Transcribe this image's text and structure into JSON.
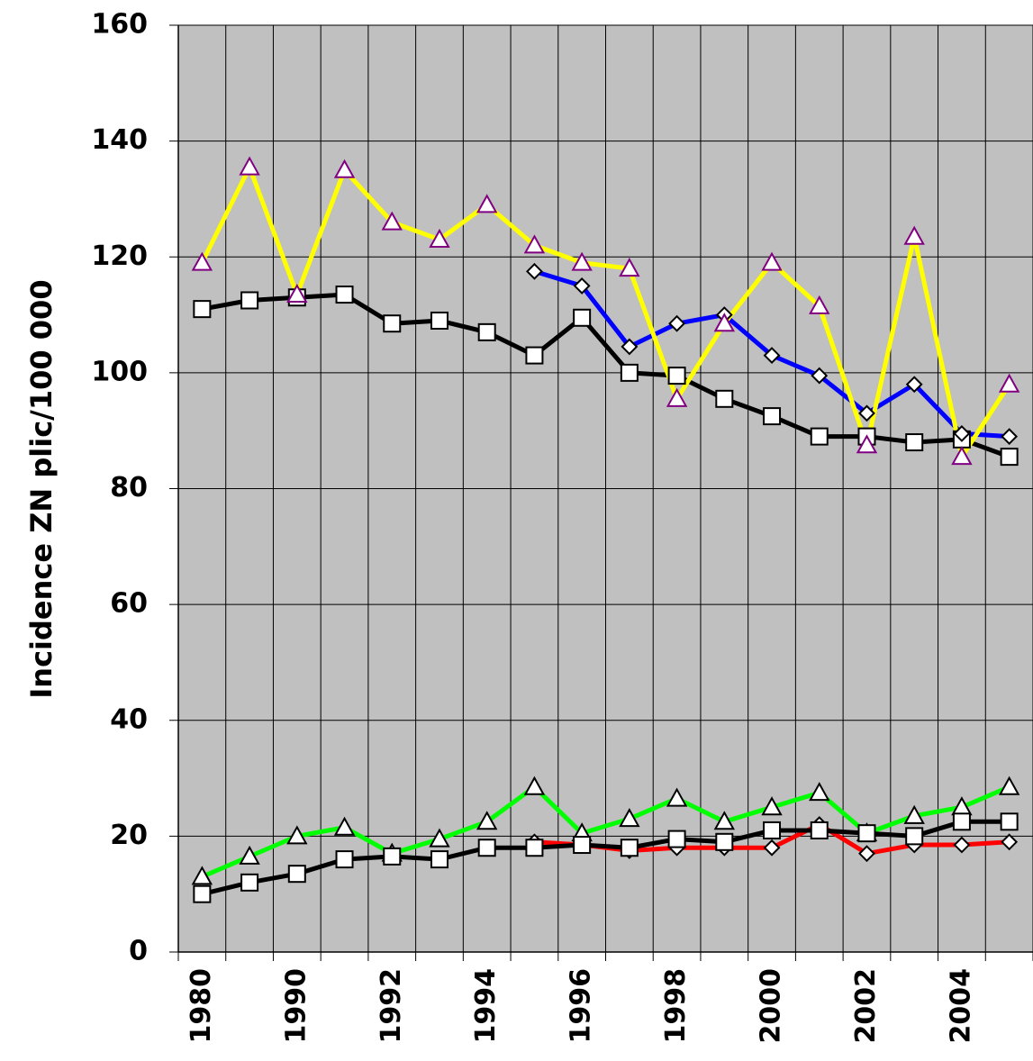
{
  "chart_data": {
    "type": "line",
    "y_label": "Incidence ZN plic/100 000",
    "categories": [
      "1980",
      null,
      "1990",
      null,
      "1992",
      null,
      "1994",
      null,
      "1996",
      null,
      "1998",
      null,
      "2000",
      null,
      "2002",
      null,
      "2004",
      null
    ],
    "ylim": [
      0,
      160
    ],
    "yticks": [
      0,
      20,
      40,
      60,
      80,
      100,
      120,
      140,
      160
    ],
    "grid": true,
    "series": [
      {
        "color": "#000000",
        "marker": "square",
        "marker_edge": "#000000",
        "values": [
          111,
          112.5,
          113,
          113.5,
          108.5,
          109,
          107,
          103,
          109.5,
          100,
          99.5,
          95.5,
          92.5,
          89,
          89,
          88,
          88.5,
          85.5
        ]
      },
      {
        "color": "#0000ff",
        "marker": "diamond",
        "marker_edge": "#000000",
        "values": [
          null,
          null,
          null,
          null,
          null,
          null,
          null,
          117.5,
          115,
          104.5,
          108.5,
          110,
          103,
          99.5,
          93,
          98,
          89.5,
          89
        ]
      },
      {
        "color": "#ffff00",
        "marker": "triangle",
        "marker_edge": "#800080",
        "values": [
          119,
          135.5,
          113.5,
          135,
          126,
          123,
          129,
          122,
          119,
          118,
          95.5,
          108.5,
          119,
          111.5,
          87.5,
          123.5,
          85.5,
          98
        ]
      },
      {
        "color": "#ff0000",
        "marker": "diamond",
        "marker_edge": "#000000",
        "values": [
          null,
          null,
          null,
          null,
          null,
          null,
          null,
          19,
          18.5,
          17.5,
          18,
          18,
          18,
          22,
          17,
          18.5,
          18.5,
          19
        ]
      },
      {
        "color": "#00ff00",
        "marker": "triangle",
        "marker_edge": "#000000",
        "values": [
          13,
          16.5,
          20,
          21.5,
          17,
          19.5,
          22.5,
          28.5,
          20.5,
          23,
          26.5,
          22.5,
          25,
          27.5,
          20.5,
          23.5,
          25,
          28.5
        ]
      },
      {
        "color": "#000000",
        "marker": "square",
        "marker_edge": "#000000",
        "values": [
          10,
          12,
          13.5,
          16,
          16.5,
          16,
          18,
          18,
          18.5,
          18,
          19.5,
          19,
          21,
          21,
          20.5,
          20,
          22.5,
          22.5
        ]
      }
    ]
  }
}
